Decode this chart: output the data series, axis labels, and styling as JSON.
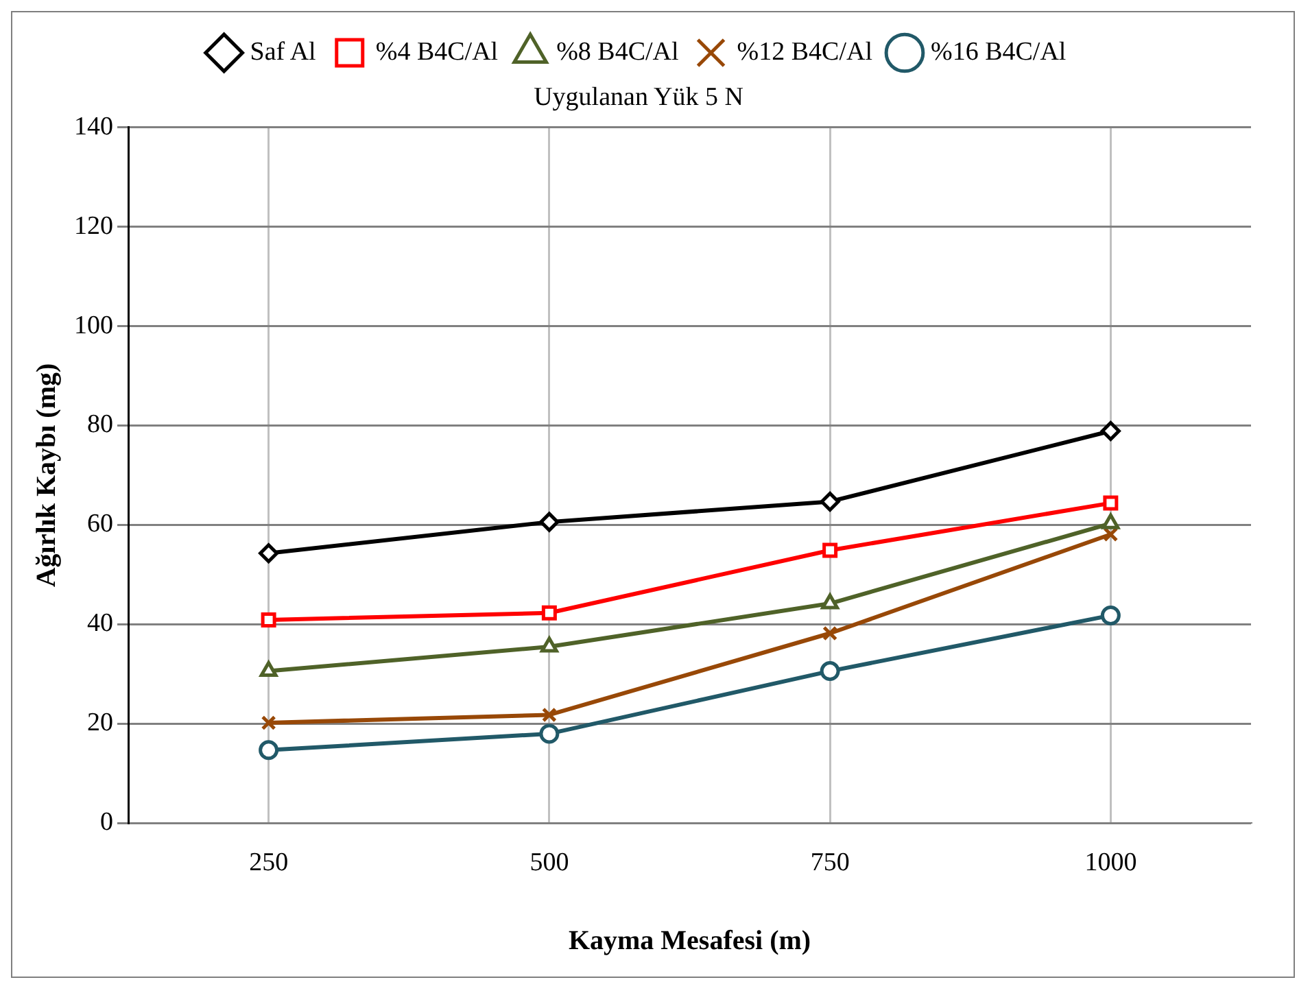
{
  "chart_data": {
    "type": "line",
    "title": "Uygulanan Yük 5 N",
    "xlabel": "Kayma Mesafesi (m)",
    "ylabel": "Ağırlık Kaybı (mg)",
    "categories": [
      "250",
      "500",
      "750",
      "1000"
    ],
    "series": [
      {
        "name": "Saf Al",
        "color": "#000000",
        "marker": "diamond",
        "values": [
          54.3,
          60.6,
          64.7,
          78.9
        ]
      },
      {
        "name": "%4 B4C/Al",
        "color": "#ff0000",
        "marker": "square",
        "values": [
          40.9,
          42.3,
          54.9,
          64.4
        ]
      },
      {
        "name": "%8 B4C/Al",
        "color": "#4f6228",
        "marker": "triangle",
        "values": [
          30.6,
          35.5,
          44.2,
          60.3
        ]
      },
      {
        "name": "%12 B4C/Al",
        "color": "#984807",
        "marker": "cross",
        "values": [
          20.2,
          21.8,
          38.2,
          58.1
        ]
      },
      {
        "name": "%16 B4C/Al",
        "color": "#215968",
        "marker": "circle",
        "values": [
          14.7,
          18.0,
          30.6,
          41.8
        ]
      }
    ],
    "ylim": [
      0,
      140
    ],
    "yticks": [
      0,
      20,
      40,
      60,
      80,
      100,
      120,
      140
    ],
    "grid": true,
    "legend": "top",
    "line_style": "solid"
  }
}
